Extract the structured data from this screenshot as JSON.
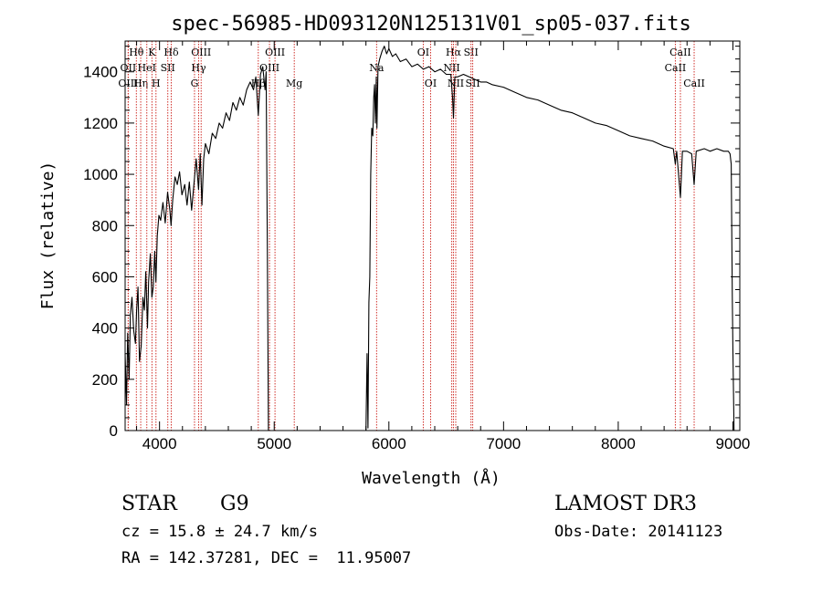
{
  "chart_data": {
    "type": "line",
    "title": "spec-56985-HD093120N125131V01_sp05-037.fits",
    "xlabel": "Wavelength (Å)",
    "ylabel": "Flux (relative)",
    "xlim": [
      3700,
      9060
    ],
    "ylim": [
      0,
      1520
    ],
    "x_ticks": [
      4000,
      5000,
      6000,
      7000,
      8000,
      9000
    ],
    "y_ticks": [
      0,
      200,
      400,
      600,
      800,
      1000,
      1200,
      1400
    ],
    "grid": false,
    "series": [
      {
        "name": "flux",
        "points": [
          [
            3700,
            300
          ],
          [
            3712,
            100
          ],
          [
            3722,
            380
          ],
          [
            3735,
            200
          ],
          [
            3745,
            450
          ],
          [
            3760,
            520
          ],
          [
            3775,
            390
          ],
          [
            3790,
            340
          ],
          [
            3800,
            470
          ],
          [
            3812,
            560
          ],
          [
            3825,
            270
          ],
          [
            3840,
            330
          ],
          [
            3855,
            520
          ],
          [
            3868,
            470
          ],
          [
            3880,
            620
          ],
          [
            3895,
            400
          ],
          [
            3905,
            580
          ],
          [
            3920,
            690
          ],
          [
            3933,
            520
          ],
          [
            3945,
            560
          ],
          [
            3958,
            700
          ],
          [
            3968,
            580
          ],
          [
            3980,
            760
          ],
          [
            3995,
            840
          ],
          [
            4010,
            820
          ],
          [
            4030,
            890
          ],
          [
            4050,
            810
          ],
          [
            4070,
            930
          ],
          [
            4090,
            860
          ],
          [
            4101,
            800
          ],
          [
            4115,
            900
          ],
          [
            4135,
            990
          ],
          [
            4155,
            960
          ],
          [
            4175,
            1010
          ],
          [
            4195,
            920
          ],
          [
            4220,
            960
          ],
          [
            4240,
            880
          ],
          [
            4260,
            970
          ],
          [
            4280,
            860
          ],
          [
            4300,
            960
          ],
          [
            4320,
            1060
          ],
          [
            4340,
            940
          ],
          [
            4355,
            1080
          ],
          [
            4370,
            880
          ],
          [
            4385,
            1060
          ],
          [
            4400,
            1120
          ],
          [
            4430,
            1080
          ],
          [
            4460,
            1160
          ],
          [
            4490,
            1140
          ],
          [
            4520,
            1200
          ],
          [
            4550,
            1180
          ],
          [
            4580,
            1240
          ],
          [
            4610,
            1210
          ],
          [
            4640,
            1280
          ],
          [
            4670,
            1250
          ],
          [
            4700,
            1300
          ],
          [
            4730,
            1270
          ],
          [
            4760,
            1330
          ],
          [
            4790,
            1360
          ],
          [
            4820,
            1330
          ],
          [
            4840,
            1380
          ],
          [
            4861,
            1230
          ],
          [
            4880,
            1390
          ],
          [
            4900,
            1420
          ],
          [
            4920,
            1330
          ],
          [
            4930,
            1400
          ],
          [
            4940,
            720
          ],
          [
            4950,
            0
          ],
          [
            4960,
            0
          ],
          [
            5800,
            0
          ],
          [
            5810,
            300
          ],
          [
            5818,
            10
          ],
          [
            5826,
            500
          ],
          [
            5834,
            600
          ],
          [
            5842,
            1000
          ],
          [
            5850,
            1180
          ],
          [
            5860,
            1150
          ],
          [
            5868,
            1300
          ],
          [
            5875,
            1350
          ],
          [
            5882,
            1200
          ],
          [
            5890,
            1380
          ],
          [
            5896,
            1180
          ],
          [
            5905,
            1420
          ],
          [
            5920,
            1450
          ],
          [
            5940,
            1480
          ],
          [
            5960,
            1500
          ],
          [
            5980,
            1470
          ],
          [
            6000,
            1490
          ],
          [
            6030,
            1460
          ],
          [
            6060,
            1470
          ],
          [
            6100,
            1440
          ],
          [
            6150,
            1450
          ],
          [
            6200,
            1420
          ],
          [
            6250,
            1430
          ],
          [
            6300,
            1410
          ],
          [
            6350,
            1420
          ],
          [
            6400,
            1400
          ],
          [
            6450,
            1410
          ],
          [
            6500,
            1390
          ],
          [
            6540,
            1390
          ],
          [
            6555,
            1300
          ],
          [
            6563,
            1220
          ],
          [
            6575,
            1380
          ],
          [
            6600,
            1380
          ],
          [
            6650,
            1390
          ],
          [
            6700,
            1380
          ],
          [
            6750,
            1370
          ],
          [
            6800,
            1360
          ],
          [
            6850,
            1360
          ],
          [
            6900,
            1350
          ],
          [
            7000,
            1340
          ],
          [
            7100,
            1320
          ],
          [
            7200,
            1300
          ],
          [
            7300,
            1290
          ],
          [
            7400,
            1270
          ],
          [
            7500,
            1250
          ],
          [
            7600,
            1240
          ],
          [
            7700,
            1220
          ],
          [
            7800,
            1200
          ],
          [
            7900,
            1190
          ],
          [
            8000,
            1170
          ],
          [
            8100,
            1150
          ],
          [
            8200,
            1140
          ],
          [
            8300,
            1130
          ],
          [
            8400,
            1110
          ],
          [
            8480,
            1100
          ],
          [
            8498,
            1040
          ],
          [
            8510,
            1090
          ],
          [
            8542,
            910
          ],
          [
            8560,
            1090
          ],
          [
            8600,
            1090
          ],
          [
            8640,
            1080
          ],
          [
            8662,
            960
          ],
          [
            8680,
            1090
          ],
          [
            8750,
            1100
          ],
          [
            8800,
            1090
          ],
          [
            8860,
            1100
          ],
          [
            8920,
            1090
          ],
          [
            8960,
            1090
          ],
          [
            8975,
            1080
          ],
          [
            8985,
            1040
          ],
          [
            8995,
            520
          ],
          [
            9000,
            300
          ],
          [
            9010,
            0
          ]
        ]
      }
    ],
    "line_markers": [
      {
        "label": "Hθ",
        "x": 3798,
        "row": 1
      },
      {
        "label": "OII",
        "x": 3727,
        "row": 2
      },
      {
        "label": "OIII",
        "x": 3727,
        "row": 3
      },
      {
        "label": "Hη",
        "x": 3836,
        "row": 3
      },
      {
        "label": "HeI",
        "x": 3889,
        "row": 2
      },
      {
        "label": "K",
        "x": 3934,
        "row": 1
      },
      {
        "label": "H",
        "x": 3969,
        "row": 3
      },
      {
        "label": "SII",
        "x": 4072,
        "row": 2
      },
      {
        "label": "Hδ",
        "x": 4102,
        "row": 1
      },
      {
        "label": "OIII",
        "x": 4363,
        "row": 1
      },
      {
        "label": "Hγ",
        "x": 4341,
        "row": 2
      },
      {
        "label": "G",
        "x": 4305,
        "row": 3
      },
      {
        "label": "Hβ",
        "x": 4861,
        "row": 3
      },
      {
        "label": "OIII",
        "x": 5007,
        "row": 1
      },
      {
        "label": "OIII",
        "x": 4959,
        "row": 2
      },
      {
        "label": "Mg",
        "x": 5175,
        "row": 3
      },
      {
        "label": "Na",
        "x": 5893,
        "row": 2
      },
      {
        "label": "OI",
        "x": 6300,
        "row": 1
      },
      {
        "label": "OI",
        "x": 6364,
        "row": 3
      },
      {
        "label": "Hα",
        "x": 6563,
        "row": 1
      },
      {
        "label": "SII",
        "x": 6716,
        "row": 1
      },
      {
        "label": "NII",
        "x": 6548,
        "row": 2
      },
      {
        "label": "NII",
        "x": 6583,
        "row": 3
      },
      {
        "label": "SII",
        "x": 6731,
        "row": 3
      },
      {
        "label": "CaII",
        "x": 8542,
        "row": 1
      },
      {
        "label": "CaII",
        "x": 8498,
        "row": 2
      },
      {
        "label": "CaII",
        "x": 8662,
        "row": 3
      }
    ],
    "marker_color": "#d0302a"
  },
  "info": {
    "object_class": "STAR",
    "subclass": "G9",
    "survey": "LAMOST DR3",
    "redshift": "cz = 15.8 ± 24.7 km/s",
    "obs_date": "Obs-Date: 20141123",
    "coords": "RA = 142.37281, DEC =  11.95007"
  }
}
